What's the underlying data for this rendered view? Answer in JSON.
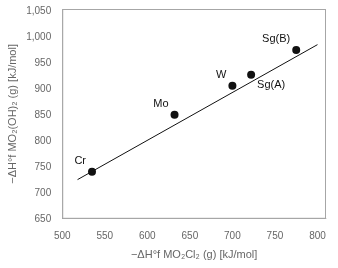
{
  "chart_data": {
    "type": "scatter",
    "xlabel": "−ΔH°f MO₂Cl₂ (g) [kJ/mol]",
    "ylabel": "−ΔH°f MO₂(OH)₂ (g) [kJ/mol]",
    "series": [
      {
        "type": "scatter",
        "color": "#111111",
        "x": [
          535,
          632,
          700,
          722,
          775
        ],
        "values": [
          741,
          851,
          907,
          928,
          976
        ],
        "labels": [
          "Cr",
          "Mo",
          "W",
          "Sg(A)",
          "Sg(B)"
        ]
      },
      {
        "type": "line",
        "color": "#111111",
        "x": [
          518,
          800
        ],
        "values": [
          725.632,
          986.2
        ]
      }
    ],
    "xlim": [
      500,
      810
    ],
    "ylim": [
      650,
      1055
    ],
    "xticks": [
      500,
      550,
      600,
      650,
      700,
      750,
      800
    ],
    "yticks": [
      650,
      700,
      750,
      800,
      850,
      900,
      950,
      1000,
      1050
    ],
    "grid": false
  }
}
